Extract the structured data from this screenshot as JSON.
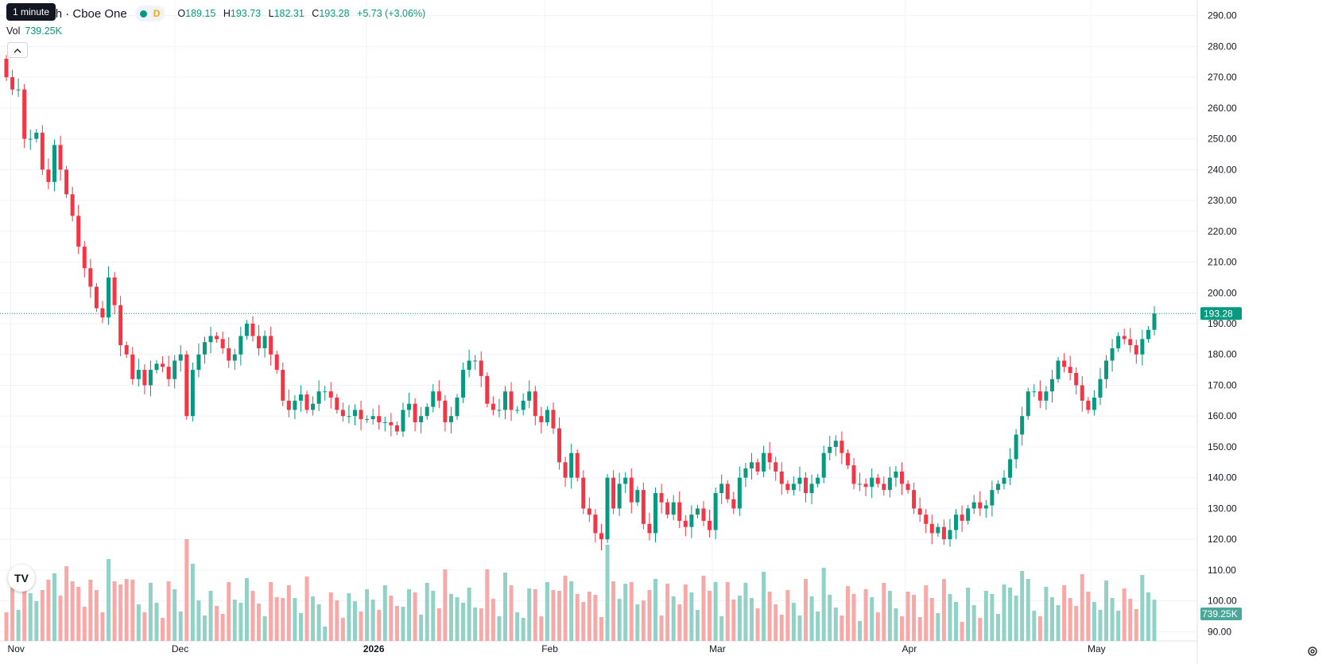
{
  "legend": {
    "title": "gy Inc · 4h · Cboe One",
    "interval_letter": "D",
    "o_key": "O",
    "o_val": "189.15",
    "h_key": "H",
    "h_val": "193.73",
    "l_key": "L",
    "l_val": "182.31",
    "c_key": "C",
    "c_val": "193.28",
    "change": "+5.73 (+3.06%)"
  },
  "tooltip": "1 minute",
  "volume": {
    "label": "Vol",
    "value": "739.25K"
  },
  "collapse_icon": "chevron-up",
  "settings_icon": "gear",
  "colors": {
    "up": "#089981",
    "down": "#F23645",
    "up_vol": "#92d2c6",
    "down_vol": "#f7a9a7"
  },
  "chart_data": {
    "type": "candlestick",
    "price_axis_ticks": [
      "290.00",
      "280.00",
      "270.00",
      "260.00",
      "250.00",
      "240.00",
      "230.00",
      "220.00",
      "210.00",
      "200.00",
      "190.00",
      "180.00",
      "170.00",
      "160.00",
      "150.00",
      "140.00",
      "130.00",
      "120.00",
      "110.00",
      "100.00",
      "90.00"
    ],
    "time_axis_ticks": [
      "Nov",
      "Dec",
      "2026",
      "Feb",
      "Mar",
      "Apr",
      "May"
    ],
    "last_price_label": "193.28",
    "last_volume_label": "739.25K",
    "ylim": [
      87,
      293
    ],
    "closes": [
      270,
      266,
      266,
      250,
      250,
      252,
      240,
      236,
      248,
      240,
      232,
      225,
      215,
      208,
      202,
      195,
      192,
      205,
      196,
      183,
      180,
      172,
      175,
      170,
      175,
      177,
      176,
      172,
      178,
      180,
      160,
      175,
      180,
      184,
      186,
      185,
      182,
      178,
      180,
      186,
      190,
      186,
      182,
      186,
      180,
      175,
      165,
      162,
      165,
      167,
      162,
      164,
      168,
      168,
      166,
      162,
      160,
      160,
      162,
      159,
      159,
      160,
      158,
      158,
      157,
      155,
      162,
      164,
      158,
      160,
      163,
      168,
      165,
      158,
      160,
      166,
      175,
      178,
      178,
      173,
      164,
      162,
      162,
      168,
      162,
      162,
      165,
      168,
      160,
      158,
      162,
      156,
      145,
      140,
      148,
      140,
      130,
      128,
      122,
      120,
      140,
      130,
      138,
      140,
      132,
      136,
      125,
      122,
      135,
      132,
      128,
      132,
      126,
      124,
      128,
      130,
      126,
      123,
      135,
      138,
      133,
      130,
      140,
      143,
      145,
      142,
      148,
      145,
      142,
      138,
      136,
      138,
      140,
      135,
      138,
      140,
      148,
      150,
      152,
      148,
      144,
      138,
      138,
      137,
      140,
      138,
      136,
      140,
      142,
      138,
      136,
      130,
      128,
      125,
      122,
      124,
      120,
      123,
      128,
      126,
      130,
      132,
      130,
      131,
      136,
      138,
      140,
      146,
      154,
      160,
      168,
      168,
      165,
      168,
      172,
      178,
      176,
      174,
      170,
      165,
      162,
      166,
      172,
      178,
      182,
      186,
      185,
      183,
      180,
      185,
      188,
      193.28
    ]
  }
}
